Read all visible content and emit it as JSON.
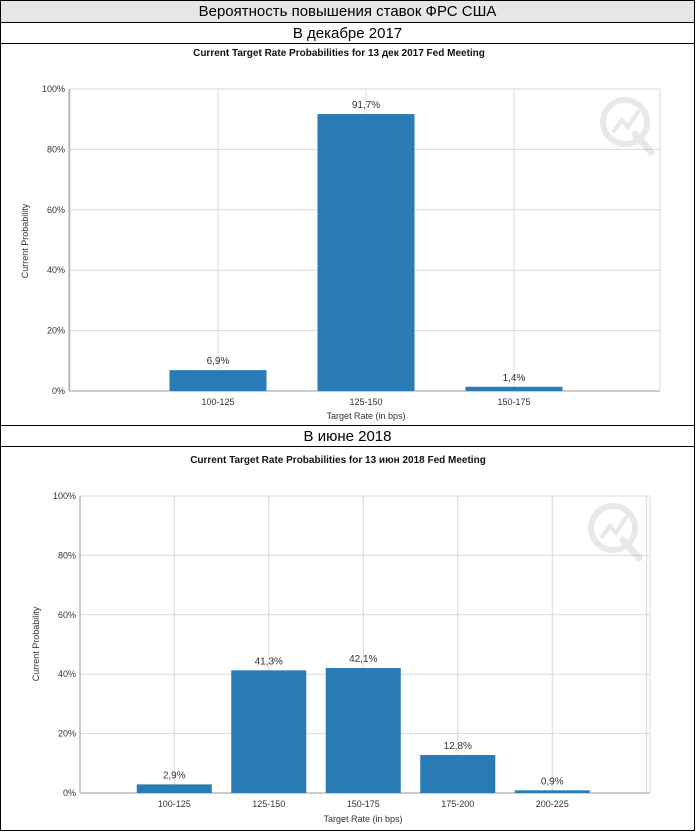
{
  "header": {
    "title": "Вероятность повышения ставок ФРС США",
    "section1": "В декабре 2017",
    "section2": "В июне 2018"
  },
  "colors": {
    "bar": "#2a7ab5",
    "grid": "#d9d9d9",
    "axis": "#999999"
  },
  "chart_data": [
    {
      "type": "bar",
      "title": "Current Target Rate Probabilities for 13 дек 2017 Fed Meeting",
      "xlabel": "Target Rate (in bps)",
      "ylabel": "Current Probability",
      "categories": [
        "100-125",
        "125-150",
        "150-175"
      ],
      "values": [
        6.9,
        91.7,
        1.4
      ],
      "value_labels": [
        "6,9%",
        "91,7%",
        "1,4%"
      ],
      "ylim": [
        0,
        100
      ],
      "yticks": [
        0,
        20,
        40,
        60,
        80,
        100
      ],
      "ytick_labels": [
        "0%",
        "20%",
        "40%",
        "60%",
        "80%",
        "100%"
      ],
      "grid": true,
      "legend": "none"
    },
    {
      "type": "bar",
      "title": "Current Target Rate Probabilities for 13 июн 2018 Fed Meeting",
      "xlabel": "Target Rate (in bps)",
      "ylabel": "Current Probability",
      "categories": [
        "100-125",
        "125-150",
        "150-175",
        "175-200",
        "200-225"
      ],
      "values": [
        2.9,
        41.3,
        42.1,
        12.8,
        0.9
      ],
      "value_labels": [
        "2,9%",
        "41,3%",
        "42,1%",
        "12,8%",
        "0,9%"
      ],
      "ylim": [
        0,
        100
      ],
      "yticks": [
        0,
        20,
        40,
        60,
        80,
        100
      ],
      "ytick_labels": [
        "0%",
        "20%",
        "40%",
        "60%",
        "80%",
        "100%"
      ],
      "grid": true,
      "legend": "none"
    }
  ]
}
